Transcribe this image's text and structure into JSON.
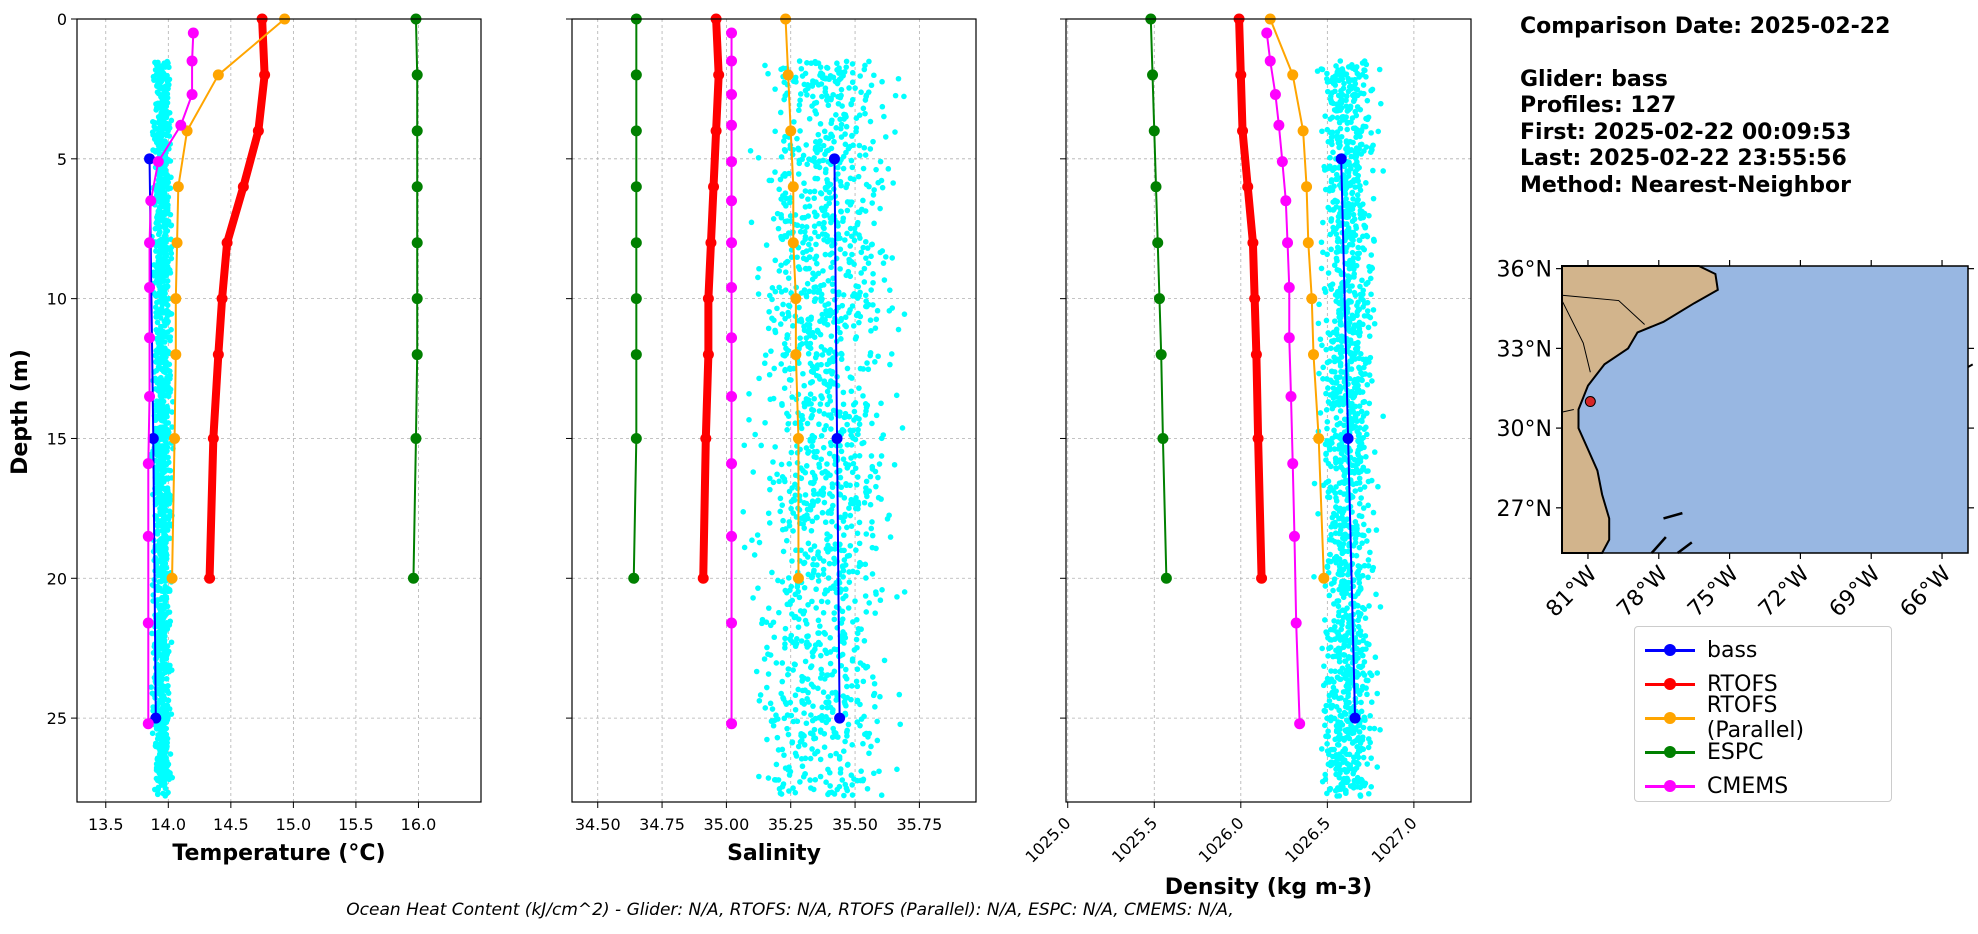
{
  "info": {
    "comparison_date": "Comparison Date: 2025-02-22",
    "glider": "Glider: bass",
    "profiles": "Profiles: 127",
    "first": "First: 2025-02-22 00:09:53",
    "last": "Last: 2025-02-22 23:55:56",
    "method": "Method: Nearest-Neighbor"
  },
  "footer": "Ocean Heat Content (kJ/cm^2) - Glider: N/A,  RTOFS: N/A,  RTOFS (Parallel): N/A,  ESPC: N/A,  CMEMS: N/A,",
  "legend": [
    {
      "name": "bass",
      "color": "#0000ff"
    },
    {
      "name": "RTOFS",
      "color": "#ff0000"
    },
    {
      "name": "RTOFS (Parallel)",
      "color": "#ffa500"
    },
    {
      "name": "ESPC",
      "color": "#008000"
    },
    {
      "name": "CMEMS",
      "color": "#ff00ff"
    }
  ],
  "colors": {
    "glider_scatter": "#00ffff",
    "ocean": "#98b7e2",
    "land": "#d2b48c",
    "marker": "#d62728"
  },
  "y_axis": {
    "label": "Depth (m)",
    "range": [
      28,
      0
    ],
    "ticks": [
      0,
      5,
      10,
      15,
      20,
      25
    ],
    "grid": true
  },
  "chart_data": [
    {
      "type": "line",
      "xlabel": "Temperature (°C)",
      "ylabel": "Depth (m)",
      "xlim": [
        13.27,
        16.5
      ],
      "ylim": [
        28,
        0
      ],
      "xticks": [
        "13.5",
        "14.0",
        "14.5",
        "15.0",
        "15.5",
        "16.0"
      ],
      "scatter": {
        "x_center": 13.95,
        "x_spread": 0.2,
        "depth_min": 1.5,
        "depth_max": 27.8
      },
      "series": [
        {
          "name": "bass",
          "color": "#0000ff",
          "width": 2,
          "points": [
            [
              13.85,
              5
            ],
            [
              13.88,
              15
            ],
            [
              13.9,
              25
            ]
          ]
        },
        {
          "name": "RTOFS",
          "color": "#ff0000",
          "width": 8,
          "points": [
            [
              14.75,
              0
            ],
            [
              14.77,
              2
            ],
            [
              14.72,
              4
            ],
            [
              14.6,
              6
            ],
            [
              14.47,
              8
            ],
            [
              14.43,
              10
            ],
            [
              14.4,
              12
            ],
            [
              14.36,
              15
            ],
            [
              14.33,
              20
            ]
          ]
        },
        {
          "name": "RTOFS (Parallel)",
          "color": "#ffa500",
          "width": 2,
          "points": [
            [
              14.93,
              0
            ],
            [
              14.4,
              2
            ],
            [
              14.15,
              4
            ],
            [
              14.08,
              6
            ],
            [
              14.07,
              8
            ],
            [
              14.06,
              10
            ],
            [
              14.06,
              12
            ],
            [
              14.05,
              15
            ],
            [
              14.03,
              20
            ]
          ]
        },
        {
          "name": "ESPC",
          "color": "#008000",
          "width": 2,
          "points": [
            [
              15.98,
              0
            ],
            [
              15.99,
              2
            ],
            [
              15.99,
              4
            ],
            [
              15.99,
              6
            ],
            [
              15.99,
              8
            ],
            [
              15.99,
              10
            ],
            [
              15.99,
              12
            ],
            [
              15.98,
              15
            ],
            [
              15.96,
              20
            ]
          ]
        },
        {
          "name": "CMEMS",
          "color": "#ff00ff",
          "width": 2,
          "points": [
            [
              14.2,
              0.5
            ],
            [
              14.19,
              1.5
            ],
            [
              14.19,
              2.7
            ],
            [
              14.1,
              3.8
            ],
            [
              13.92,
              5.1
            ],
            [
              13.86,
              6.5
            ],
            [
              13.85,
              8
            ],
            [
              13.85,
              9.6
            ],
            [
              13.85,
              11.4
            ],
            [
              13.85,
              13.5
            ],
            [
              13.84,
              15.9
            ],
            [
              13.84,
              18.5
            ],
            [
              13.84,
              21.6
            ],
            [
              13.84,
              25.2
            ]
          ]
        }
      ]
    },
    {
      "type": "line",
      "xlabel": "Salinity",
      "ylabel": "",
      "xlim": [
        34.4,
        35.97
      ],
      "ylim": [
        28,
        0
      ],
      "xticks": [
        "34.50",
        "34.75",
        "35.00",
        "35.25",
        "35.50",
        "35.75"
      ],
      "scatter": {
        "x_center": 35.38,
        "x_spread": 0.72,
        "depth_min": 1.5,
        "depth_max": 27.8
      },
      "series": [
        {
          "name": "bass",
          "color": "#0000ff",
          "width": 2,
          "points": [
            [
              35.42,
              5
            ],
            [
              35.43,
              15
            ],
            [
              35.44,
              25
            ]
          ]
        },
        {
          "name": "RTOFS",
          "color": "#ff0000",
          "width": 8,
          "points": [
            [
              34.96,
              0
            ],
            [
              34.97,
              2
            ],
            [
              34.96,
              4
            ],
            [
              34.95,
              6
            ],
            [
              34.94,
              8
            ],
            [
              34.93,
              10
            ],
            [
              34.93,
              12
            ],
            [
              34.92,
              15
            ],
            [
              34.91,
              20
            ]
          ]
        },
        {
          "name": "RTOFS (Parallel)",
          "color": "#ffa500",
          "width": 2,
          "points": [
            [
              35.23,
              0
            ],
            [
              35.24,
              2
            ],
            [
              35.25,
              4
            ],
            [
              35.26,
              6
            ],
            [
              35.26,
              8
            ],
            [
              35.27,
              10
            ],
            [
              35.27,
              12
            ],
            [
              35.28,
              15
            ],
            [
              35.28,
              20
            ]
          ]
        },
        {
          "name": "ESPC",
          "color": "#008000",
          "width": 2,
          "points": [
            [
              34.65,
              0
            ],
            [
              34.65,
              2
            ],
            [
              34.65,
              4
            ],
            [
              34.65,
              6
            ],
            [
              34.65,
              8
            ],
            [
              34.65,
              10
            ],
            [
              34.65,
              12
            ],
            [
              34.65,
              15
            ],
            [
              34.64,
              20
            ]
          ]
        },
        {
          "name": "CMEMS",
          "color": "#ff00ff",
          "width": 2,
          "points": [
            [
              35.02,
              0.5
            ],
            [
              35.02,
              1.5
            ],
            [
              35.02,
              2.7
            ],
            [
              35.02,
              3.8
            ],
            [
              35.02,
              5.1
            ],
            [
              35.02,
              6.5
            ],
            [
              35.02,
              8
            ],
            [
              35.02,
              9.6
            ],
            [
              35.02,
              11.4
            ],
            [
              35.02,
              13.5
            ],
            [
              35.02,
              15.9
            ],
            [
              35.02,
              18.5
            ],
            [
              35.02,
              21.6
            ],
            [
              35.02,
              25.2
            ]
          ]
        }
      ]
    },
    {
      "type": "line",
      "xlabel": "Density (kg m-3)",
      "ylabel": "",
      "xlim": [
        1024.99,
        1027.33
      ],
      "ylim": [
        28,
        0
      ],
      "xticks": [
        "1025.0",
        "1025.5",
        "1026.0",
        "1026.5",
        "1027.0"
      ],
      "scatter": {
        "x_center": 1026.62,
        "x_spread": 0.42,
        "depth_min": 1.5,
        "depth_max": 27.8
      },
      "series": [
        {
          "name": "bass",
          "color": "#0000ff",
          "width": 2,
          "points": [
            [
              1026.58,
              5
            ],
            [
              1026.62,
              15
            ],
            [
              1026.66,
              25
            ]
          ]
        },
        {
          "name": "RTOFS",
          "color": "#ff0000",
          "width": 8,
          "points": [
            [
              1025.99,
              0
            ],
            [
              1026.0,
              2
            ],
            [
              1026.01,
              4
            ],
            [
              1026.04,
              6
            ],
            [
              1026.07,
              8
            ],
            [
              1026.08,
              10
            ],
            [
              1026.09,
              12
            ],
            [
              1026.1,
              15
            ],
            [
              1026.12,
              20
            ]
          ]
        },
        {
          "name": "RTOFS (Parallel)",
          "color": "#ffa500",
          "width": 2,
          "points": [
            [
              1026.17,
              0
            ],
            [
              1026.3,
              2
            ],
            [
              1026.36,
              4
            ],
            [
              1026.38,
              6
            ],
            [
              1026.39,
              8
            ],
            [
              1026.41,
              10
            ],
            [
              1026.42,
              12
            ],
            [
              1026.45,
              15
            ],
            [
              1026.48,
              20
            ]
          ]
        },
        {
          "name": "ESPC",
          "color": "#008000",
          "width": 2,
          "points": [
            [
              1025.48,
              0
            ],
            [
              1025.49,
              2
            ],
            [
              1025.5,
              4
            ],
            [
              1025.51,
              6
            ],
            [
              1025.52,
              8
            ],
            [
              1025.53,
              10
            ],
            [
              1025.54,
              12
            ],
            [
              1025.55,
              15
            ],
            [
              1025.57,
              20
            ]
          ]
        },
        {
          "name": "CMEMS",
          "color": "#ff00ff",
          "width": 2,
          "points": [
            [
              1026.15,
              0.5
            ],
            [
              1026.17,
              1.5
            ],
            [
              1026.2,
              2.7
            ],
            [
              1026.22,
              3.8
            ],
            [
              1026.24,
              5.1
            ],
            [
              1026.26,
              6.5
            ],
            [
              1026.27,
              8
            ],
            [
              1026.28,
              9.6
            ],
            [
              1026.28,
              11.4
            ],
            [
              1026.29,
              13.5
            ],
            [
              1026.3,
              15.9
            ],
            [
              1026.31,
              18.5
            ],
            [
              1026.32,
              21.6
            ],
            [
              1026.34,
              25.2
            ]
          ]
        }
      ]
    }
  ],
  "map": {
    "lat_ticks": [
      "36°N",
      "33°N",
      "30°N",
      "27°N"
    ],
    "lat_values": [
      36,
      33,
      30,
      27
    ],
    "lon_ticks": [
      "81°W",
      "78°W",
      "75°W",
      "72°W",
      "69°W",
      "66°W"
    ],
    "lon_values": [
      -81,
      -78,
      -75,
      -72,
      -69,
      -66
    ],
    "lat_range": [
      25.3,
      36.1
    ],
    "lon_range": [
      -82.1,
      -64.9
    ],
    "glider_position": {
      "lat": 31.0,
      "lon": -80.9
    }
  }
}
